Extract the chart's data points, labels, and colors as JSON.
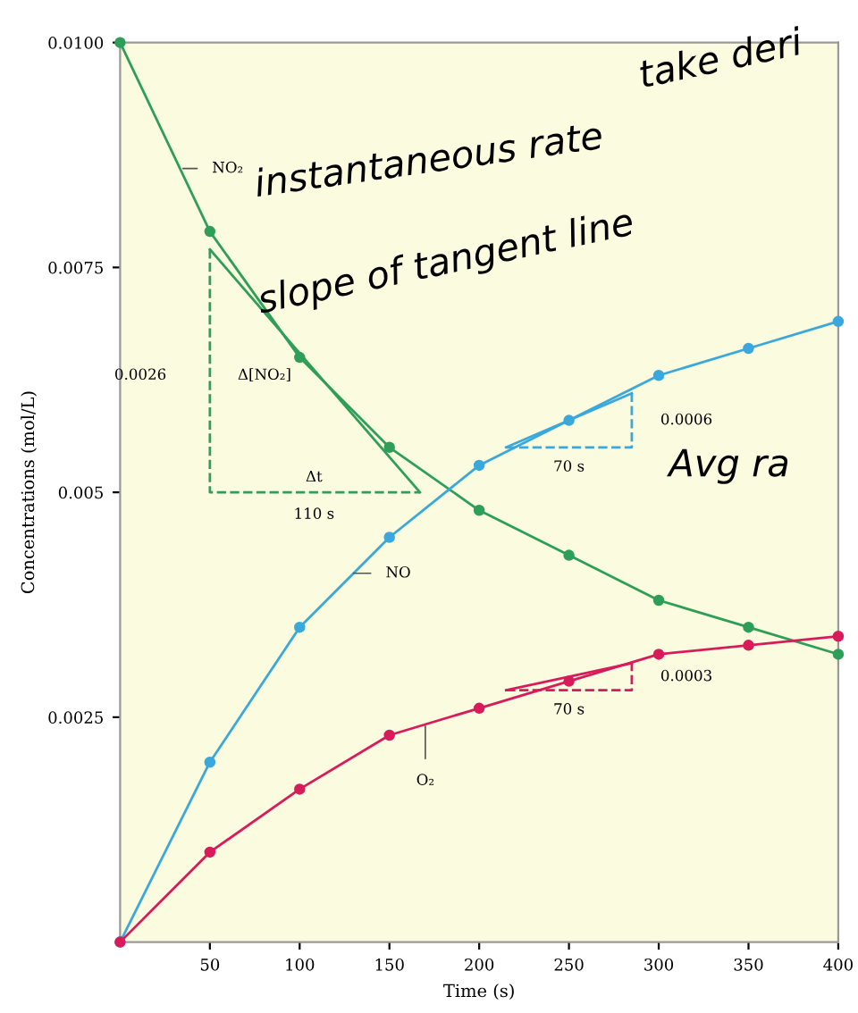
{
  "chart_data": {
    "type": "line",
    "xlabel": "Time (s)",
    "ylabel": "Concentrations (mol/L)",
    "xlim": [
      0,
      400
    ],
    "xticks": [
      50,
      100,
      150,
      200,
      250,
      300,
      350,
      400
    ],
    "ylim": [
      0,
      0.01
    ],
    "yticks": [
      0.0025,
      0.005,
      0.0075,
      {
        "value": 0.01,
        "label": "0.0100"
      }
    ],
    "x": [
      0,
      50,
      100,
      150,
      200,
      250,
      300,
      350,
      400
    ],
    "marker": "circle",
    "grid": false,
    "legend": false,
    "series": [
      {
        "color": "#2e9e58",
        "values": [
          0.01,
          0.0079,
          0.0065,
          0.0055,
          0.0048,
          0.0043,
          0.0038,
          0.0035,
          0.0032
        ]
      },
      {
        "color": "#3aa8dc",
        "values": [
          0,
          0.002,
          0.0035,
          0.0045,
          0.0053,
          0.0058,
          0.0063,
          0.0066,
          0.0069
        ]
      },
      {
        "color": "#d81b5a",
        "values": [
          0,
          0.001,
          0.0017,
          0.0023,
          0.0026,
          0.0029,
          0.0032,
          0.0033,
          0.0034
        ]
      },
      {
        "type": "line",
        "marker": "none",
        "color": "#2e9e58",
        "x": [
          50,
          167
        ],
        "values": [
          0.0077,
          0.005
        ]
      },
      {
        "type": "line",
        "marker": "none",
        "line_style": "dashed",
        "color": "#2e9e58",
        "x": [
          50,
          50,
          167
        ],
        "values": [
          0.0077,
          0.005,
          0.005
        ]
      },
      {
        "type": "line",
        "marker": "none",
        "color": "#3aa8dc",
        "x": [
          215,
          285
        ],
        "values": [
          0.0055,
          0.0061
        ]
      },
      {
        "type": "line",
        "marker": "none",
        "line_style": "dashed",
        "color": "#3aa8dc",
        "x": [
          215,
          285,
          285
        ],
        "values": [
          0.0055,
          0.0055,
          0.0061
        ]
      },
      {
        "type": "line",
        "marker": "none",
        "color": "#d81b5a",
        "x": [
          215,
          285
        ],
        "values": [
          0.0028,
          0.0031
        ]
      },
      {
        "type": "line",
        "marker": "none",
        "line_style": "dashed",
        "color": "#d81b5a",
        "x": [
          215,
          285,
          285
        ],
        "values": [
          0.0028,
          0.0028,
          0.0031
        ]
      }
    ],
    "annotations": [
      {
        "text": "NO₂",
        "x": 35,
        "y": 0.0086
      },
      {
        "text": "NO",
        "x": 130,
        "y": 0.0041
      },
      {
        "text": "O₂",
        "x": 170,
        "y": 0.0024
      },
      {
        "text": "0.0026",
        "x": 50,
        "y": 0.0063
      },
      {
        "text": "Δ[NO₂]",
        "x": 50,
        "y": 0.0063
      },
      {
        "text": "Δt",
        "x": 108,
        "y": 0.005
      },
      {
        "text": "110 s",
        "x": 108,
        "y": 0.005
      },
      {
        "text": "0.0006",
        "x": 285,
        "y": 0.0058
      },
      {
        "text": "70 s",
        "x": 250,
        "y": 0.0055
      },
      {
        "text": "0.0003",
        "x": 285,
        "y": 0.00295
      },
      {
        "text": "70 s",
        "x": 250,
        "y": 0.0028
      },
      "instantaneous rate",
      "slope of tangent line",
      "take deri",
      "Avg ra"
    ]
  }
}
